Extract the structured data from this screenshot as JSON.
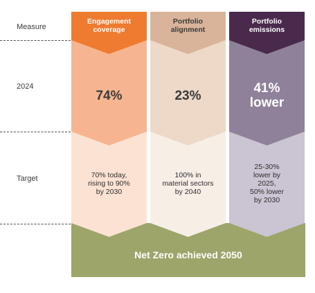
{
  "rows": {
    "measure": "Measure",
    "year": "2024",
    "target": "Target"
  },
  "columns": [
    {
      "heading": "Engagement\ncoverage",
      "value": "74%",
      "target": "70% today,\nrising to 90%\nby 2030",
      "colors": {
        "head": "#ee7b30",
        "head_text": "#ffffff",
        "value_bg": "#f6b590",
        "value_text": "#3a3a3a",
        "target_bg": "#fce2d3"
      }
    },
    {
      "heading": "Portfolio\nalignment",
      "value": "23%",
      "target": "100% in\nmaterial sectors\nby 2040",
      "colors": {
        "head": "#d9b49a",
        "head_text": "#3a3a3a",
        "value_bg": "#eed9c8",
        "value_text": "#3a3a3a",
        "target_bg": "#f7eee6"
      }
    },
    {
      "heading": "Portfolio\nemissions",
      "value": "41%\nlower",
      "target": "25-30%\nlower by\n2025,\n50% lower\nby 2030",
      "colors": {
        "head": "#4a2a4c",
        "head_text": "#ffffff",
        "value_bg": "#8f8199",
        "value_text": "#ffffff",
        "target_bg": "#cbc4d2"
      }
    }
  ],
  "footer": {
    "text": "Net Zero achieved 2050",
    "color": "#9ea56b"
  }
}
